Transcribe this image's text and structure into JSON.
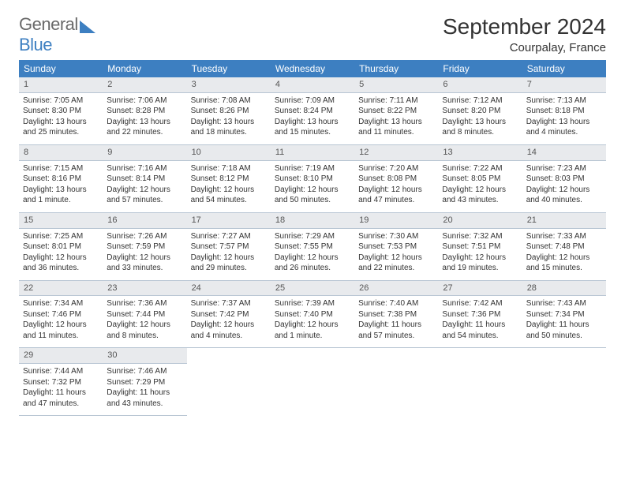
{
  "logo": {
    "word1": "General",
    "word2": "Blue"
  },
  "title": "September 2024",
  "location": "Courpalay, France",
  "colors": {
    "header_bg": "#3d7fc1",
    "header_text": "#ffffff",
    "daynum_bg": "#e8eaed",
    "daynum_text": "#555555",
    "border": "#b8c5d3",
    "body_text": "#333333",
    "logo_gray": "#6a6a6a",
    "logo_blue": "#3d7fc1"
  },
  "weekdays": [
    "Sunday",
    "Monday",
    "Tuesday",
    "Wednesday",
    "Thursday",
    "Friday",
    "Saturday"
  ],
  "weeks": [
    [
      {
        "n": "1",
        "sr": "Sunrise: 7:05 AM",
        "ss": "Sunset: 8:30 PM",
        "d1": "Daylight: 13 hours",
        "d2": "and 25 minutes."
      },
      {
        "n": "2",
        "sr": "Sunrise: 7:06 AM",
        "ss": "Sunset: 8:28 PM",
        "d1": "Daylight: 13 hours",
        "d2": "and 22 minutes."
      },
      {
        "n": "3",
        "sr": "Sunrise: 7:08 AM",
        "ss": "Sunset: 8:26 PM",
        "d1": "Daylight: 13 hours",
        "d2": "and 18 minutes."
      },
      {
        "n": "4",
        "sr": "Sunrise: 7:09 AM",
        "ss": "Sunset: 8:24 PM",
        "d1": "Daylight: 13 hours",
        "d2": "and 15 minutes."
      },
      {
        "n": "5",
        "sr": "Sunrise: 7:11 AM",
        "ss": "Sunset: 8:22 PM",
        "d1": "Daylight: 13 hours",
        "d2": "and 11 minutes."
      },
      {
        "n": "6",
        "sr": "Sunrise: 7:12 AM",
        "ss": "Sunset: 8:20 PM",
        "d1": "Daylight: 13 hours",
        "d2": "and 8 minutes."
      },
      {
        "n": "7",
        "sr": "Sunrise: 7:13 AM",
        "ss": "Sunset: 8:18 PM",
        "d1": "Daylight: 13 hours",
        "d2": "and 4 minutes."
      }
    ],
    [
      {
        "n": "8",
        "sr": "Sunrise: 7:15 AM",
        "ss": "Sunset: 8:16 PM",
        "d1": "Daylight: 13 hours",
        "d2": "and 1 minute."
      },
      {
        "n": "9",
        "sr": "Sunrise: 7:16 AM",
        "ss": "Sunset: 8:14 PM",
        "d1": "Daylight: 12 hours",
        "d2": "and 57 minutes."
      },
      {
        "n": "10",
        "sr": "Sunrise: 7:18 AM",
        "ss": "Sunset: 8:12 PM",
        "d1": "Daylight: 12 hours",
        "d2": "and 54 minutes."
      },
      {
        "n": "11",
        "sr": "Sunrise: 7:19 AM",
        "ss": "Sunset: 8:10 PM",
        "d1": "Daylight: 12 hours",
        "d2": "and 50 minutes."
      },
      {
        "n": "12",
        "sr": "Sunrise: 7:20 AM",
        "ss": "Sunset: 8:08 PM",
        "d1": "Daylight: 12 hours",
        "d2": "and 47 minutes."
      },
      {
        "n": "13",
        "sr": "Sunrise: 7:22 AM",
        "ss": "Sunset: 8:05 PM",
        "d1": "Daylight: 12 hours",
        "d2": "and 43 minutes."
      },
      {
        "n": "14",
        "sr": "Sunrise: 7:23 AM",
        "ss": "Sunset: 8:03 PM",
        "d1": "Daylight: 12 hours",
        "d2": "and 40 minutes."
      }
    ],
    [
      {
        "n": "15",
        "sr": "Sunrise: 7:25 AM",
        "ss": "Sunset: 8:01 PM",
        "d1": "Daylight: 12 hours",
        "d2": "and 36 minutes."
      },
      {
        "n": "16",
        "sr": "Sunrise: 7:26 AM",
        "ss": "Sunset: 7:59 PM",
        "d1": "Daylight: 12 hours",
        "d2": "and 33 minutes."
      },
      {
        "n": "17",
        "sr": "Sunrise: 7:27 AM",
        "ss": "Sunset: 7:57 PM",
        "d1": "Daylight: 12 hours",
        "d2": "and 29 minutes."
      },
      {
        "n": "18",
        "sr": "Sunrise: 7:29 AM",
        "ss": "Sunset: 7:55 PM",
        "d1": "Daylight: 12 hours",
        "d2": "and 26 minutes."
      },
      {
        "n": "19",
        "sr": "Sunrise: 7:30 AM",
        "ss": "Sunset: 7:53 PM",
        "d1": "Daylight: 12 hours",
        "d2": "and 22 minutes."
      },
      {
        "n": "20",
        "sr": "Sunrise: 7:32 AM",
        "ss": "Sunset: 7:51 PM",
        "d1": "Daylight: 12 hours",
        "d2": "and 19 minutes."
      },
      {
        "n": "21",
        "sr": "Sunrise: 7:33 AM",
        "ss": "Sunset: 7:48 PM",
        "d1": "Daylight: 12 hours",
        "d2": "and 15 minutes."
      }
    ],
    [
      {
        "n": "22",
        "sr": "Sunrise: 7:34 AM",
        "ss": "Sunset: 7:46 PM",
        "d1": "Daylight: 12 hours",
        "d2": "and 11 minutes."
      },
      {
        "n": "23",
        "sr": "Sunrise: 7:36 AM",
        "ss": "Sunset: 7:44 PM",
        "d1": "Daylight: 12 hours",
        "d2": "and 8 minutes."
      },
      {
        "n": "24",
        "sr": "Sunrise: 7:37 AM",
        "ss": "Sunset: 7:42 PM",
        "d1": "Daylight: 12 hours",
        "d2": "and 4 minutes."
      },
      {
        "n": "25",
        "sr": "Sunrise: 7:39 AM",
        "ss": "Sunset: 7:40 PM",
        "d1": "Daylight: 12 hours",
        "d2": "and 1 minute."
      },
      {
        "n": "26",
        "sr": "Sunrise: 7:40 AM",
        "ss": "Sunset: 7:38 PM",
        "d1": "Daylight: 11 hours",
        "d2": "and 57 minutes."
      },
      {
        "n": "27",
        "sr": "Sunrise: 7:42 AM",
        "ss": "Sunset: 7:36 PM",
        "d1": "Daylight: 11 hours",
        "d2": "and 54 minutes."
      },
      {
        "n": "28",
        "sr": "Sunrise: 7:43 AM",
        "ss": "Sunset: 7:34 PM",
        "d1": "Daylight: 11 hours",
        "d2": "and 50 minutes."
      }
    ],
    [
      {
        "n": "29",
        "sr": "Sunrise: 7:44 AM",
        "ss": "Sunset: 7:32 PM",
        "d1": "Daylight: 11 hours",
        "d2": "and 47 minutes."
      },
      {
        "n": "30",
        "sr": "Sunrise: 7:46 AM",
        "ss": "Sunset: 7:29 PM",
        "d1": "Daylight: 11 hours",
        "d2": "and 43 minutes."
      },
      null,
      null,
      null,
      null,
      null
    ]
  ]
}
